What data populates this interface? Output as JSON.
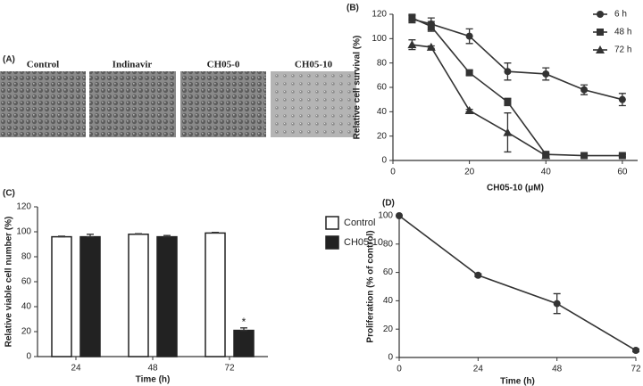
{
  "image_panel": {
    "label": "(A)",
    "captions": [
      "Control",
      "Indinavir",
      "CH05-0",
      "CH05-10"
    ]
  },
  "chart_data": [
    {
      "type": "line",
      "panel_label": "(B)",
      "x_label": "CH05-10 (μM)",
      "y_label": "Relative cell survival (%)",
      "xlim": [
        0,
        64
      ],
      "xticks": [
        0,
        20,
        40,
        60
      ],
      "ylim": [
        0,
        120
      ],
      "yticks": [
        0,
        20,
        40,
        60,
        80,
        100,
        120
      ],
      "legend": "top-right",
      "series": [
        {
          "name": "6 h",
          "color": "#333333",
          "marker": "circle",
          "x": [
            5,
            10,
            20,
            30,
            40,
            50,
            60
          ],
          "values": [
            116,
            112,
            102,
            73,
            71,
            58,
            50
          ],
          "errors": [
            3,
            5,
            6,
            7,
            5,
            4,
            5
          ]
        },
        {
          "name": "48 h",
          "color": "#333333",
          "marker": "square",
          "x": [
            5,
            10,
            20,
            30,
            40,
            50,
            60
          ],
          "values": [
            117,
            110,
            72,
            48,
            5,
            4,
            4
          ],
          "errors": [
            3,
            4,
            2,
            3,
            1,
            1,
            1
          ]
        },
        {
          "name": "72 h",
          "color": "#333333",
          "marker": "triangle",
          "x": [
            5,
            10,
            20,
            30,
            40
          ],
          "values": [
            95,
            93,
            41,
            23,
            4
          ],
          "errors": [
            4,
            1,
            1,
            16,
            1
          ]
        }
      ]
    },
    {
      "type": "bar",
      "panel_label": "(C)",
      "x_label": "Time (h)",
      "y_label": "Relative viable cell number (%)",
      "categories": [
        "24",
        "48",
        "72"
      ],
      "ylim": [
        0,
        120
      ],
      "yticks": [
        0,
        20,
        40,
        60,
        80,
        100,
        120
      ],
      "legend": "top-right",
      "series": [
        {
          "name": "Control",
          "color": "#ffffff",
          "values": [
            96,
            98,
            99
          ],
          "errors": [
            0.5,
            0.5,
            0.5
          ]
        },
        {
          "name": "CH05-10",
          "color": "#222222",
          "values": [
            96,
            96,
            21
          ],
          "errors": [
            2,
            1,
            2
          ],
          "marks": [
            null,
            null,
            "*"
          ]
        }
      ]
    },
    {
      "type": "line",
      "panel_label": "(D)",
      "x_label": "Time  (h)",
      "y_label": "Proliferation (% of control)",
      "xlim": [
        0,
        72
      ],
      "xticks": [
        0,
        24,
        48,
        72
      ],
      "ylim": [
        0,
        100
      ],
      "yticks": [
        0,
        20,
        40,
        60,
        80,
        100
      ],
      "series": [
        {
          "color": "#333333",
          "marker": "circle",
          "x": [
            0,
            24,
            48,
            72
          ],
          "values": [
            100,
            58,
            38,
            5
          ],
          "errors": [
            0,
            1,
            7,
            1
          ]
        }
      ]
    }
  ]
}
